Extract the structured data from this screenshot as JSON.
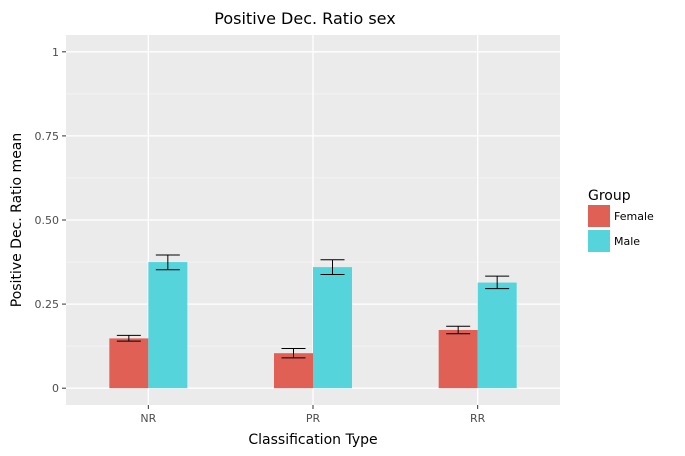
{
  "chart_data": {
    "type": "bar",
    "title": "Positive Dec. Ratio sex",
    "xlabel": "Classification Type",
    "ylabel": "Positive Dec. Ratio mean",
    "categories": [
      "NR",
      "PR",
      "RR"
    ],
    "ylim": [
      -0.05,
      1.05
    ],
    "yticks": [
      0,
      0.25,
      0.5,
      0.75,
      1
    ],
    "ytick_labels": [
      "0",
      "0.25",
      "0.50",
      "0.75",
      "1"
    ],
    "grid": true,
    "legend": {
      "title": "Group",
      "position": "right"
    },
    "series": [
      {
        "name": "Female",
        "color": "#e06055",
        "values": [
          0.148,
          0.104,
          0.173
        ],
        "err_low": [
          0.14,
          0.09,
          0.162
        ],
        "err_high": [
          0.157,
          0.118,
          0.184
        ]
      },
      {
        "name": "Male",
        "color": "#56d4dc",
        "values": [
          0.375,
          0.36,
          0.314
        ],
        "err_low": [
          0.352,
          0.338,
          0.296
        ],
        "err_high": [
          0.396,
          0.382,
          0.333
        ]
      }
    ]
  }
}
